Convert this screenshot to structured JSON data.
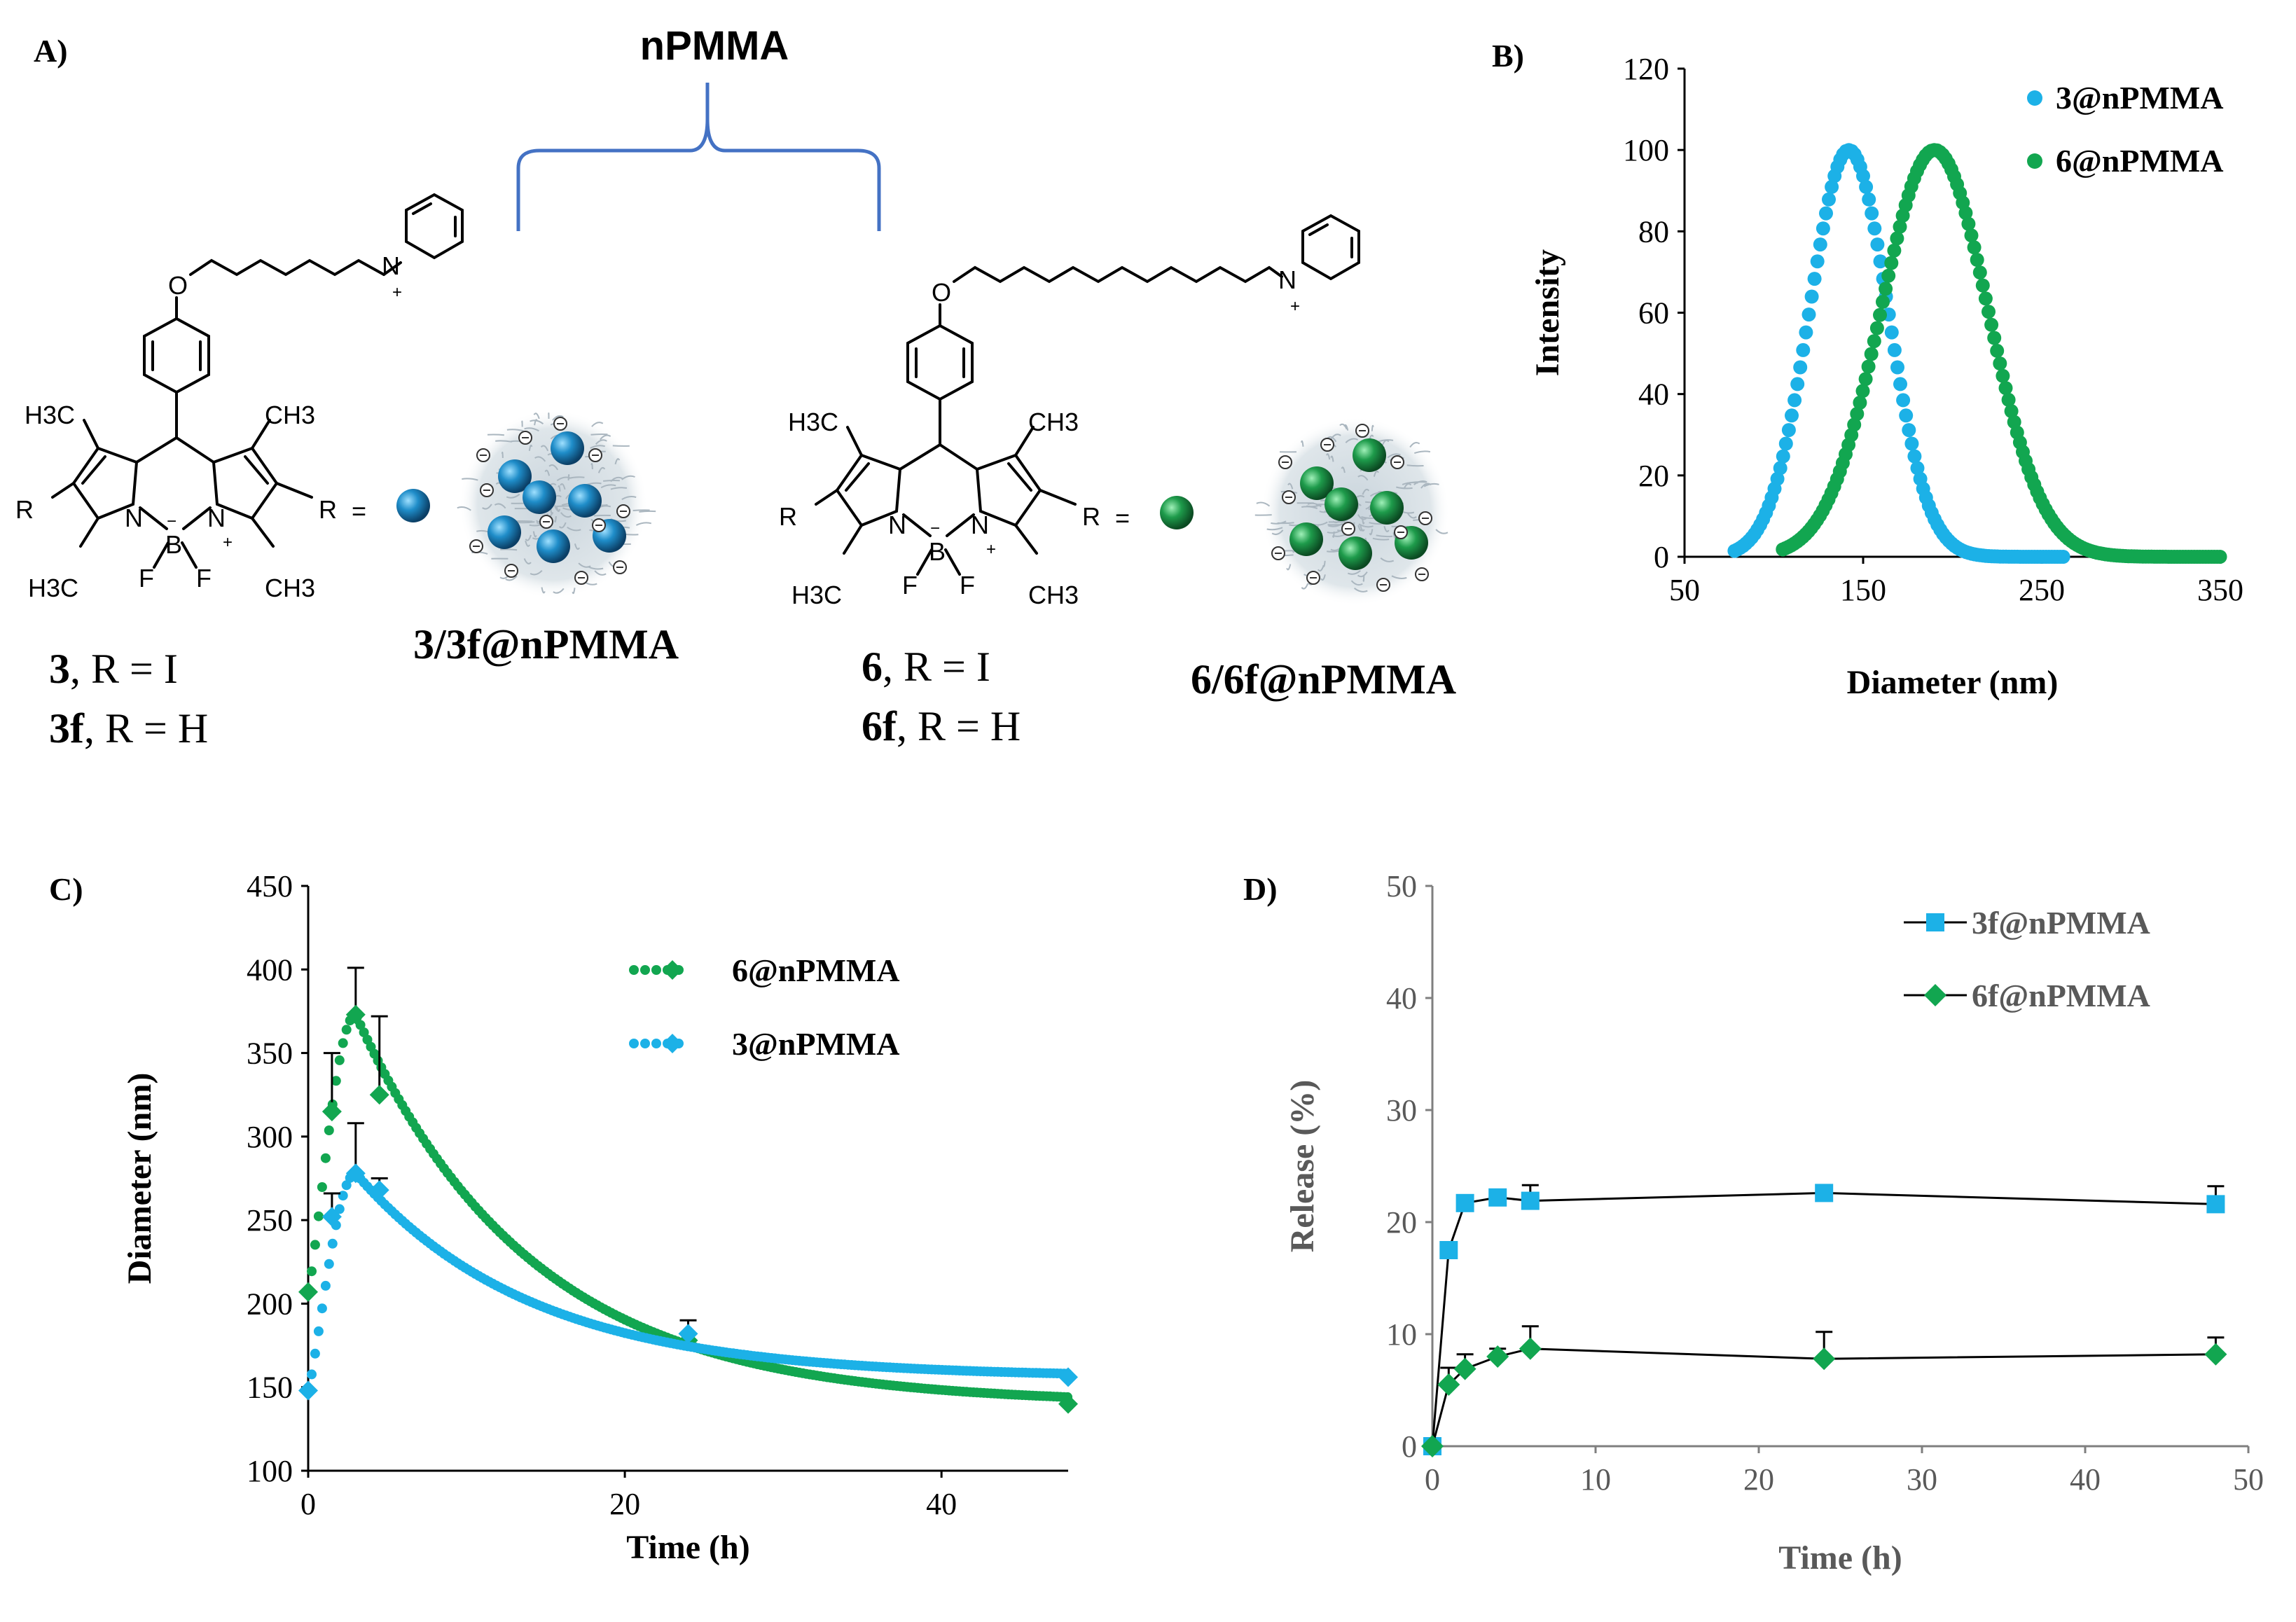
{
  "panel_a": {
    "label": "A)",
    "top_label": "nPMMA",
    "bracket_color": "#4472C4",
    "compound_left": {
      "line1_num": "3",
      "line1_rest": ", R = I",
      "line2_num": "3f",
      "line2_rest": ", R = H",
      "nanoparticle_label": "3/3f@nPMMA",
      "bead_color": "#1F8DC9"
    },
    "compound_right": {
      "line1_num": "6",
      "line1_rest": ", R = I",
      "line2_num": "6f",
      "line2_rest": ", R = H",
      "nanoparticle_label": "6/6f@nPMMA",
      "bead_color": "#1E9B4B"
    },
    "atoms": {
      "o": "O",
      "n": "N",
      "n_plus": "N",
      "b": "B",
      "f": "F",
      "r": "R",
      "equals": "=",
      "h3c": "H3C",
      "ch3": "CH3",
      "plus": "+",
      "minus": "−"
    }
  },
  "chart_data": [
    {
      "panel": "B)",
      "type": "scatter",
      "title": "",
      "xlabel": "Diameter (nm)",
      "ylabel": "Intensity",
      "xlim": [
        50,
        350
      ],
      "ylim": [
        0,
        120
      ],
      "xticks": [
        "50",
        "150",
        "250",
        "350"
      ],
      "yticks": [
        "0",
        "20",
        "40",
        "60",
        "80",
        "100",
        "120"
      ],
      "legend_position": "top-right",
      "series": [
        {
          "name": "3@nPMMA",
          "color": "#1CB1E7",
          "shape": "circle",
          "peak_x": 142,
          "peak_y": 100,
          "sigma": 22,
          "x_range": [
            78,
            262
          ]
        },
        {
          "name": "6@nPMMA",
          "color": "#12A650",
          "shape": "circle",
          "peak_x": 190,
          "peak_y": 100,
          "sigma": 30,
          "x_range": [
            105,
            350
          ]
        }
      ]
    },
    {
      "panel": "C)",
      "type": "line",
      "title": "",
      "xlabel": "Time (h)",
      "ylabel": "Diameter (nm)",
      "xlim": [
        0,
        48
      ],
      "ylim": [
        100,
        450
      ],
      "xticks": [
        "0",
        "20",
        "40"
      ],
      "yticks": [
        "100",
        "150",
        "200",
        "250",
        "300",
        "350",
        "400",
        "450"
      ],
      "legend_position": "top-right",
      "series": [
        {
          "name": "6@nPMMA",
          "color": "#12A650",
          "marker": "diamond",
          "line": "dotted",
          "x": [
            0,
            1.5,
            3,
            4.5,
            24,
            48
          ],
          "y": [
            207,
            315,
            373,
            325,
            178,
            140
          ],
          "err": [
            0,
            35,
            28,
            47,
            0,
            0
          ]
        },
        {
          "name": "3@nPMMA",
          "color": "#1CB1E7",
          "marker": "diamond",
          "line": "dotted",
          "x": [
            0,
            1.5,
            3,
            4.5,
            24,
            48
          ],
          "y": [
            148,
            252,
            278,
            268,
            182,
            156
          ],
          "err": [
            0,
            14,
            30,
            7,
            8,
            0
          ]
        }
      ]
    },
    {
      "panel": "D)",
      "type": "line",
      "title": "",
      "xlabel": "Time (h)",
      "ylabel": "Release (%)",
      "xlim": [
        0,
        50
      ],
      "ylim": [
        0,
        50
      ],
      "xticks": [
        "0",
        "10",
        "20",
        "30",
        "40",
        "50"
      ],
      "yticks": [
        "0",
        "10",
        "20",
        "30",
        "40",
        "50"
      ],
      "legend_position": "top-right",
      "series": [
        {
          "name": "3f@nPMMA",
          "color": "#1CB1E7",
          "marker": "square",
          "x": [
            0,
            1,
            2,
            4,
            6,
            24,
            48
          ],
          "y": [
            0,
            17.5,
            21.7,
            22.2,
            21.9,
            22.6,
            21.6
          ],
          "err": [
            0,
            0,
            0,
            0.6,
            1.4,
            0,
            1.6
          ]
        },
        {
          "name": "6f@nPMMA",
          "color": "#12A650",
          "marker": "diamond",
          "x": [
            0,
            1,
            2,
            4,
            6,
            24,
            48
          ],
          "y": [
            0,
            5.5,
            6.9,
            8.0,
            8.7,
            7.8,
            8.2
          ],
          "err": [
            0,
            1.5,
            1.3,
            0.7,
            2.0,
            2.4,
            1.5
          ]
        }
      ]
    }
  ]
}
